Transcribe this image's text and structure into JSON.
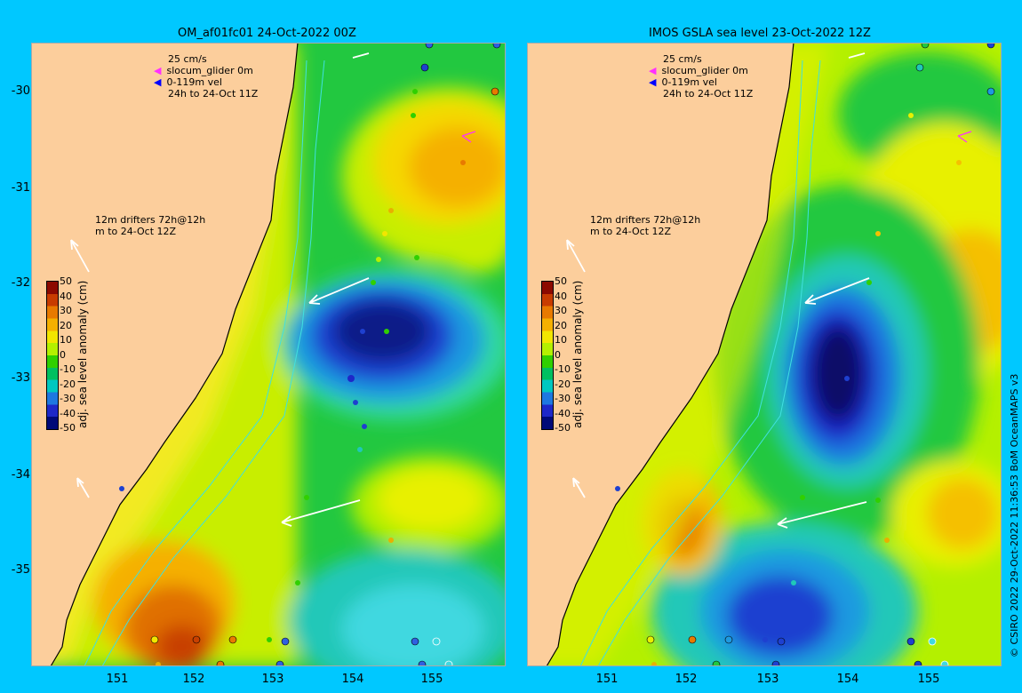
{
  "panels": [
    {
      "title": "OM_af01fc01 24-Oct-2022 00Z",
      "legend": {
        "scale": "25 cm/s",
        "glider": "slocum_glider 0m",
        "vel": "0-119m vel",
        "period": "24h to 24-Oct 11Z"
      },
      "drifters": {
        "line1": "12m drifters 72h@12h",
        "line2": "m  to 24-Oct 12Z"
      }
    },
    {
      "title": "IMOS GSLA sea level  23-Oct-2022 12Z",
      "legend": {
        "scale": "25 cm/s",
        "glider": "slocum_glider 0m",
        "vel": "0-119m vel",
        "period": "24h to 24-Oct 11Z"
      },
      "drifters": {
        "line1": "12m drifters 72h@12h",
        "line2": "m  to 24-Oct 12Z"
      }
    }
  ],
  "axes": {
    "y_ticks": [
      "-30",
      "-31",
      "-32",
      "-33",
      "-34",
      "-35"
    ],
    "x_ticks": [
      "151",
      "152",
      "153",
      "154",
      "155"
    ]
  },
  "colorbar": {
    "title": "adj. sea level anomaly (cm)",
    "ticks": [
      "50",
      "40",
      "30",
      "20",
      "10",
      "0",
      "-10",
      "-20",
      "-30",
      "-40",
      "-50"
    ],
    "colors": [
      "#8c0a00",
      "#c83c00",
      "#e87a00",
      "#f5b000",
      "#f2e600",
      "#b4f000",
      "#30d000",
      "#00c060",
      "#00c8c0",
      "#1e78e0",
      "#1e28c8",
      "#000a78"
    ]
  },
  "footer": "© CSIRO 2022  29-Oct-2022 11:36:53 BoM OceanMAPS v3"
}
